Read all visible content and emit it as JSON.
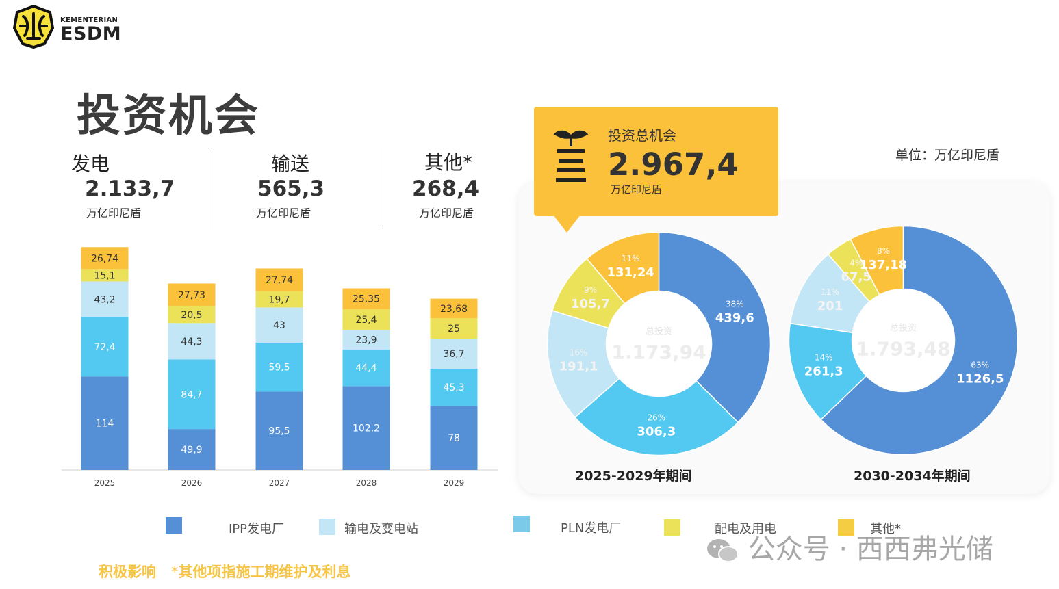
{
  "logo": {
    "top_text": "KEMENTERIAN",
    "main_text": "ESDM"
  },
  "title": "投资机会",
  "stats": [
    {
      "name": "发电",
      "value": "2.133,7",
      "unit": "万亿印尼盾"
    },
    {
      "name": "输送",
      "value": "565,3",
      "unit": "万亿印尼盾"
    },
    {
      "name": "其他*",
      "value": "268,4",
      "unit": "万亿印尼盾"
    }
  ],
  "callout": {
    "icon": "sprout-icon",
    "label": "投资总机会",
    "value": "2.967,4",
    "unit": "万亿印尼盾"
  },
  "unit_note": "单位：万亿印尼盾",
  "legend": [
    {
      "label": "IPP发电厂",
      "color": "#5590d6"
    },
    {
      "label": "输电及变电站",
      "color": "#c2e6f6"
    },
    {
      "label": "PLN发电厂",
      "color": "#7ccaea"
    },
    {
      "label": "配电及用电",
      "color": "#ebe25a"
    },
    {
      "label": "其他*",
      "color": "#f4cd42"
    }
  ],
  "footer": {
    "left": "积极影响",
    "asterisk": "*",
    "note": "其他项指施工期维护及利息"
  },
  "watermark": "公众号 · 西西弗光储",
  "chart_data": [
    {
      "type": "bar",
      "stacked": true,
      "categories": [
        "2025",
        "2026",
        "2027",
        "2028",
        "2029"
      ],
      "series": [
        {
          "values": [
            114,
            49.9,
            95.5,
            102.2,
            78
          ],
          "labels": [
            "114",
            "49,9",
            "95,5",
            "102,2",
            "78"
          ],
          "color": "#5590d6"
        },
        {
          "values": [
            72.4,
            84.7,
            59.5,
            44.4,
            45.3
          ],
          "labels": [
            "72,4",
            "84,7",
            "59,5",
            "44,4",
            "45,3"
          ],
          "color": "#53c8f0"
        },
        {
          "values": [
            43.2,
            44.3,
            43,
            23.9,
            36.7
          ],
          "labels": [
            "43,2",
            "44,3",
            "43",
            "23,9",
            "36,7"
          ],
          "color": "#c2e6f6"
        },
        {
          "values": [
            15.1,
            20.5,
            19.7,
            25.4,
            25
          ],
          "labels": [
            "15,1",
            "20,5",
            "19,7",
            "25,4",
            "25"
          ],
          "color": "#ebe25a"
        },
        {
          "values": [
            26.74,
            27.73,
            27.74,
            25.35,
            23.68
          ],
          "labels": [
            "26,74",
            "27,73",
            "27,74",
            "25,35",
            "23,68"
          ],
          "color": "#fbc13a"
        }
      ]
    },
    {
      "type": "pie",
      "donut": true,
      "title": "2025-2029年期间",
      "center_label": "总投资",
      "center_value": "1.173,94",
      "slices": [
        {
          "value": 439.6,
          "label": "439,6",
          "pct": "38%",
          "color": "#5590d6"
        },
        {
          "value": 306.3,
          "label": "306,3",
          "pct": "26%",
          "color": "#53c8f0"
        },
        {
          "value": 191.1,
          "label": "191,1",
          "pct": "16%",
          "color": "#c2e6f6"
        },
        {
          "value": 105.7,
          "label": "105,7",
          "pct": "9%",
          "color": "#ebe25a"
        },
        {
          "value": 131.24,
          "label": "131,24",
          "pct": "11%",
          "color": "#fbc13a"
        }
      ]
    },
    {
      "type": "pie",
      "donut": true,
      "title": "2030-2034年期间",
      "center_label": "总投资",
      "center_value": "1.793,48",
      "slices": [
        {
          "value": 1126.5,
          "label": "1126,5",
          "pct": "63%",
          "color": "#5590d6"
        },
        {
          "value": 261.3,
          "label": "261,3",
          "pct": "14%",
          "color": "#53c8f0"
        },
        {
          "value": 201,
          "label": "201",
          "pct": "11%",
          "color": "#c2e6f6"
        },
        {
          "value": 67.5,
          "label": "67,5",
          "pct": "4%",
          "color": "#ebe25a"
        },
        {
          "value": 137.18,
          "label": "137,18",
          "pct": "8%",
          "color": "#fbc13a"
        }
      ]
    }
  ]
}
